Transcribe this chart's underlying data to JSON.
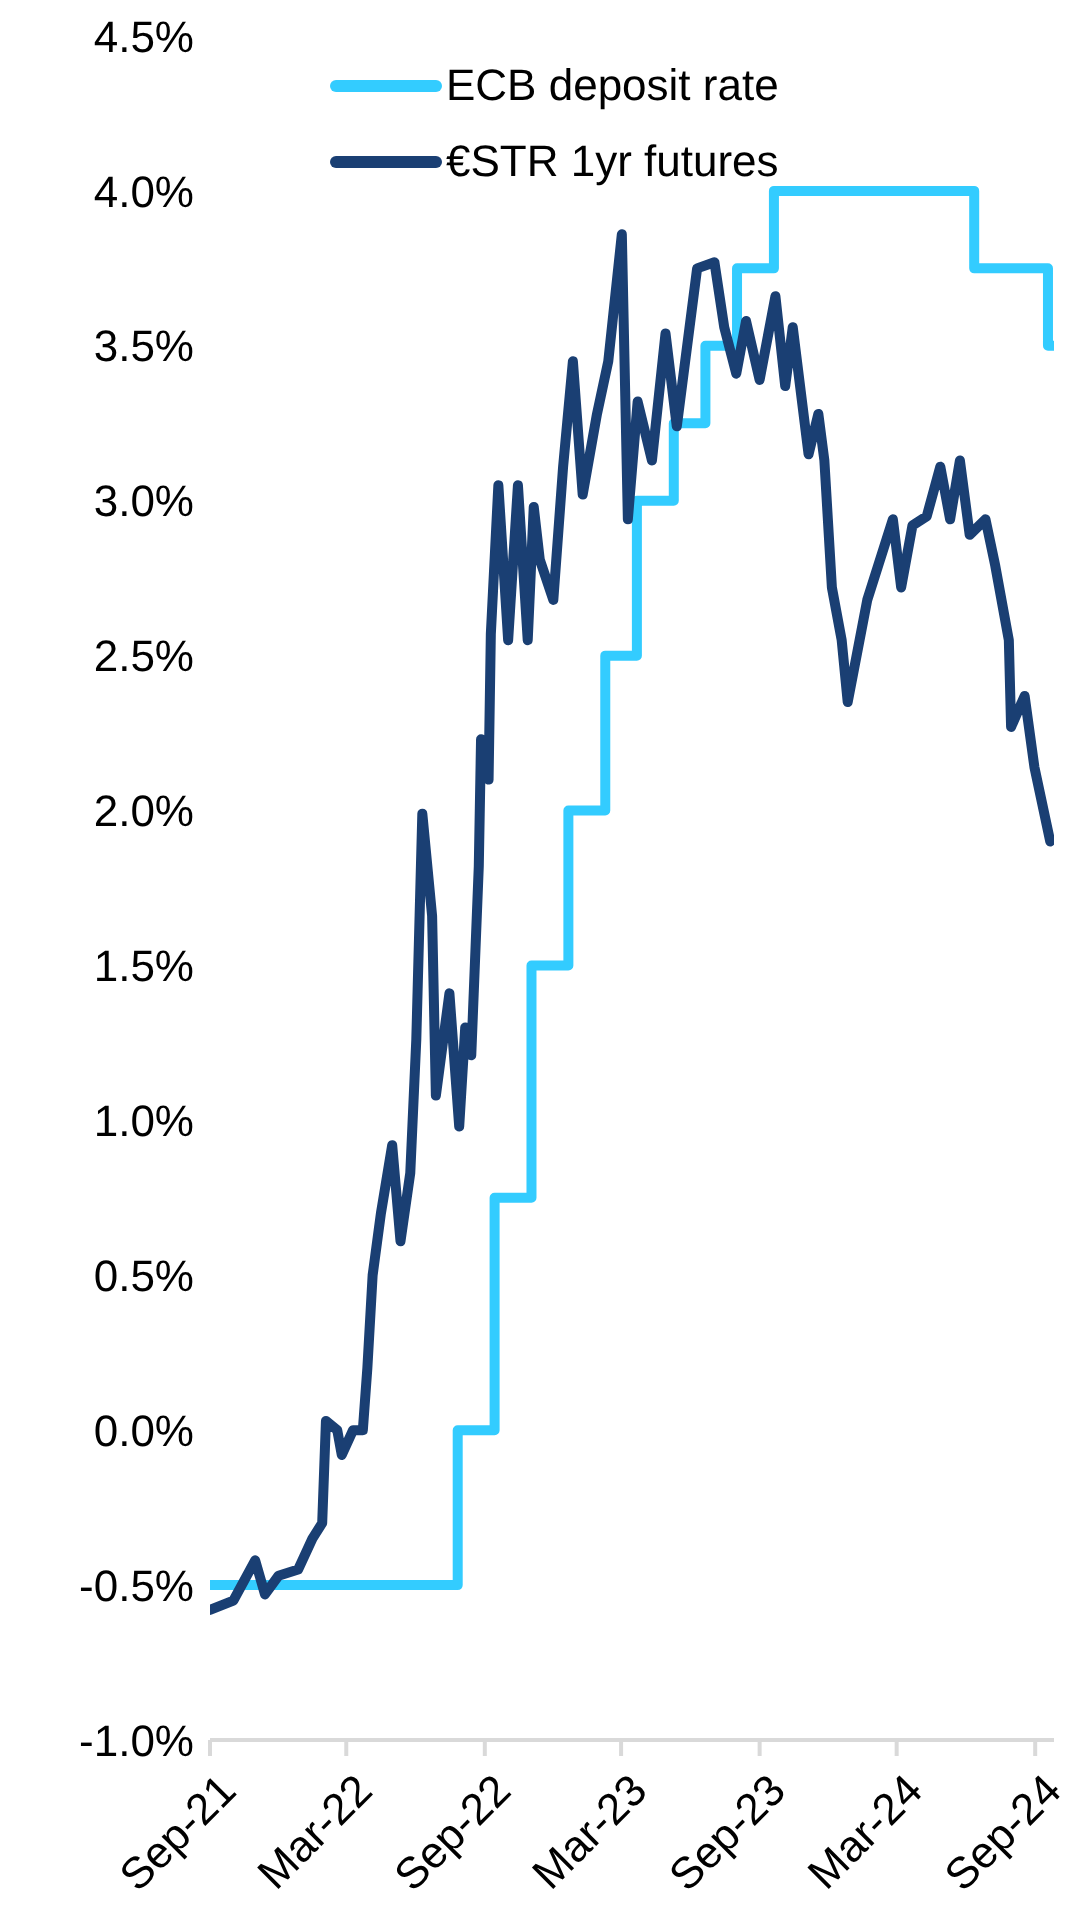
{
  "chart_data": {
    "type": "line",
    "xlim": [
      "2021-09-01",
      "2024-09-26"
    ],
    "xticks": [
      {
        "value": "2021-09-01",
        "label": "Sep-21"
      },
      {
        "value": "2022-03-01",
        "label": "Mar-22"
      },
      {
        "value": "2022-09-01",
        "label": "Sep-22"
      },
      {
        "value": "2023-03-01",
        "label": "Mar-23"
      },
      {
        "value": "2023-09-01",
        "label": "Sep-23"
      },
      {
        "value": "2024-03-01",
        "label": "Mar-24"
      },
      {
        "value": "2024-09-01",
        "label": "Sep-24"
      }
    ],
    "ylim": [
      -1,
      4.5
    ],
    "yticks": [
      {
        "value": -1,
        "label": "-1.0%"
      },
      {
        "value": -0.5,
        "label": "-0.5%"
      },
      {
        "value": 0,
        "label": "0.0%"
      },
      {
        "value": 0.5,
        "label": "0.5%"
      },
      {
        "value": 1,
        "label": "1.0%"
      },
      {
        "value": 1.5,
        "label": "1.5%"
      },
      {
        "value": 2,
        "label": "2.0%"
      },
      {
        "value": 2.5,
        "label": "2.5%"
      },
      {
        "value": 3,
        "label": "3.0%"
      },
      {
        "value": 3.5,
        "label": "3.5%"
      },
      {
        "value": 4,
        "label": "4.0%"
      },
      {
        "value": 4.5,
        "label": "4.5%"
      }
    ],
    "legend": "top",
    "grid": false,
    "series": [
      {
        "name": "ECB deposit rate",
        "type": "step",
        "color": "#33ccff",
        "x": [
          "2021-09-01",
          "2022-07-27",
          "2022-09-14",
          "2022-11-02",
          "2022-12-21",
          "2023-02-08",
          "2023-03-22",
          "2023-05-10",
          "2023-06-21",
          "2023-08-02",
          "2023-09-20",
          "2024-06-12",
          "2024-09-18",
          "2024-09-26"
        ],
        "values": [
          -0.5,
          0,
          0.75,
          1.5,
          2,
          2.5,
          3,
          3.25,
          3.5,
          3.75,
          4,
          3.75,
          3.5,
          3.5
        ]
      },
      {
        "name": "€STR 1yr futures",
        "type": "line",
        "color": "#1a3f73",
        "x": [
          "2021-09-01",
          "2021-10-02",
          "2021-10-31",
          "2021-11-13",
          "2021-12-01",
          "2021-12-27",
          "2022-01-15",
          "2022-01-28",
          "2022-02-02",
          "2022-02-17",
          "2022-02-23",
          "2022-03-10",
          "2022-03-23",
          "2022-03-29",
          "2022-04-05",
          "2022-04-16",
          "2022-05-01",
          "2022-05-12",
          "2022-05-25",
          "2022-06-02",
          "2022-06-10",
          "2022-06-23",
          "2022-06-28",
          "2022-07-16",
          "2022-07-29",
          "2022-08-06",
          "2022-08-14",
          "2022-08-24",
          "2022-08-27",
          "2022-09-06",
          "2022-09-09",
          "2022-09-19",
          "2022-10-02",
          "2022-10-15",
          "2022-10-28",
          "2022-11-05",
          "2022-11-13",
          "2022-12-01",
          "2022-12-14",
          "2022-12-27",
          "2023-01-09",
          "2023-01-28",
          "2023-02-12",
          "2023-03-02",
          "2023-03-10",
          "2023-03-23",
          "2023-04-11",
          "2023-04-29",
          "2023-05-14",
          "2023-06-10",
          "2023-07-03",
          "2023-07-16",
          "2023-08-01",
          "2023-08-14",
          "2023-09-01",
          "2023-09-22",
          "2023-10-05",
          "2023-10-15",
          "2023-11-05",
          "2023-11-18",
          "2023-11-26",
          "2023-12-06",
          "2023-12-19",
          "2023-12-27",
          "2024-01-22",
          "2024-02-25",
          "2024-03-07",
          "2024-03-22",
          "2024-04-10",
          "2024-04-28",
          "2024-05-11",
          "2024-05-24",
          "2024-06-06",
          "2024-06-27",
          "2024-07-10",
          "2024-07-28",
          "2024-07-31",
          "2024-08-18",
          "2024-08-31",
          "2024-09-21"
        ],
        "values": [
          -0.58,
          -0.55,
          -0.42,
          -0.53,
          -0.47,
          -0.45,
          -0.35,
          -0.3,
          0.03,
          0,
          -0.08,
          0,
          0,
          0.2,
          0.5,
          0.7,
          0.92,
          0.61,
          0.83,
          1.26,
          1.99,
          1.66,
          1.08,
          1.41,
          0.98,
          1.3,
          1.21,
          1.82,
          2.23,
          2.1,
          2.57,
          3.05,
          2.55,
          3.05,
          2.55,
          2.98,
          2.81,
          2.68,
          3.11,
          3.45,
          3.02,
          3.28,
          3.45,
          3.86,
          2.94,
          3.32,
          3.13,
          3.54,
          3.24,
          3.75,
          3.77,
          3.56,
          3.41,
          3.58,
          3.39,
          3.66,
          3.37,
          3.56,
          3.15,
          3.28,
          3.13,
          2.72,
          2.55,
          2.35,
          2.68,
          2.94,
          2.72,
          2.92,
          2.95,
          3.11,
          2.94,
          3.13,
          2.89,
          2.94,
          2.79,
          2.55,
          2.27,
          2.37,
          2.14,
          1.9
        ]
      }
    ]
  }
}
